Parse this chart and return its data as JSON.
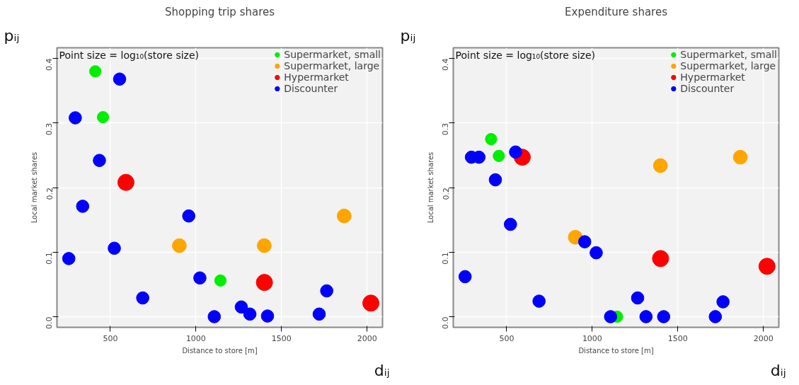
{
  "chart_data": [
    {
      "type": "bubble",
      "title": "Shopping trip shares",
      "xlabel": "Distance to store [m]",
      "ylabel": "Local market shares",
      "annotations": [
        "Point size = log₁₀(store size)",
        "pᵢⱼ",
        "dᵢⱼ"
      ],
      "xlim": [
        188,
        2090
      ],
      "xticks": [
        500,
        1000,
        1500,
        2000
      ],
      "ylim": [
        -0.0165,
        0.4165
      ],
      "yticks": [
        {
          "value": 0,
          "label": "0.0"
        },
        0.1,
        0.2,
        0.3,
        0.4
      ],
      "grid": true,
      "legend": "top right",
      "marker": "circle",
      "series": [
        {
          "name": "Supermarket, small",
          "color": "#00ee00",
          "x": [
            412,
            457,
            1143
          ],
          "values": [
            0.38,
            0.309,
            0.056
          ],
          "sizes": [
            0.5,
            0.5,
            0.5
          ]
        },
        {
          "name": "Supermarket, large",
          "color": "#ffa500",
          "x": [
            903,
            1399,
            1866
          ],
          "values": [
            0.11,
            0.11,
            0.156
          ],
          "sizes": [
            0.74,
            0.74,
            0.74
          ]
        },
        {
          "name": "Hypermarket",
          "color": "#ff0000",
          "x": [
            591,
            1400,
            2022
          ],
          "values": [
            0.208,
            0.053,
            0.021
          ],
          "sizes": [
            1,
            1,
            1
          ]
        },
        {
          "name": "Discounter",
          "color": "#0000ff",
          "x": [
            554,
            295,
            436,
            338,
            958,
            523,
            257,
            1023,
            689,
            1107,
            1265,
            1315,
            1418,
            1720,
            1764
          ],
          "values": [
            0.368,
            0.308,
            0.242,
            0.171,
            0.156,
            0.106,
            0.09,
            0.06,
            0.029,
            0.0,
            0.015,
            0.004,
            0.001,
            0.004,
            0.04
          ],
          "sizes": [
            0.59,
            0.59,
            0.59,
            0.59,
            0.59,
            0.59,
            0.59,
            0.59,
            0.59,
            0.59,
            0.59,
            0.59,
            0.59,
            0.59,
            0.59
          ]
        }
      ]
    },
    {
      "type": "bubble",
      "title": "Expenditure shares",
      "xlabel": "Distance to store [m]",
      "ylabel": "Local market shares",
      "annotations": [
        "Point size = log₁₀(store size)",
        "pᵢⱼ",
        "dᵢⱼ"
      ],
      "xlim": [
        188,
        2090
      ],
      "xticks": [
        500,
        1000,
        1500,
        2000
      ],
      "ylim": [
        -0.0165,
        0.4165
      ],
      "yticks": [
        {
          "value": 0,
          "label": "0.0"
        },
        0.1,
        0.2,
        0.3,
        0.4
      ],
      "grid": true,
      "legend": "top right",
      "marker": "circle",
      "series": [
        {
          "name": "Supermarket, small",
          "color": "#00ee00",
          "x": [
            409,
            454,
            1145
          ],
          "values": [
            0.275,
            0.249,
            0.0
          ],
          "sizes": [
            0.5,
            0.5,
            0.5
          ]
        },
        {
          "name": "Supermarket, large",
          "color": "#ffa500",
          "x": [
            901,
            1398,
            1865
          ],
          "values": [
            0.123,
            0.234,
            0.247
          ],
          "sizes": [
            0.74,
            0.74,
            0.74
          ]
        },
        {
          "name": "Hypermarket",
          "color": "#ff0000",
          "x": [
            591,
            1399,
            2021
          ],
          "values": [
            0.247,
            0.09,
            0.078
          ],
          "sizes": [
            1,
            1,
            1
          ]
        },
        {
          "name": "Discounter",
          "color": "#0000ff",
          "x": [
            294,
            338,
            552,
            434,
            522,
            956,
            1023,
            257,
            689,
            1107,
            1265,
            1314,
            1417,
            1719,
            1764
          ],
          "values": [
            0.247,
            0.247,
            0.255,
            0.212,
            0.143,
            0.116,
            0.099,
            0.062,
            0.024,
            0.0,
            0.029,
            0.0,
            0.0,
            0.0,
            0.023
          ],
          "sizes": [
            0.59,
            0.59,
            0.59,
            0.59,
            0.59,
            0.59,
            0.59,
            0.59,
            0.59,
            0.59,
            0.59,
            0.59,
            0.59,
            0.59,
            0.59
          ]
        }
      ]
    }
  ]
}
